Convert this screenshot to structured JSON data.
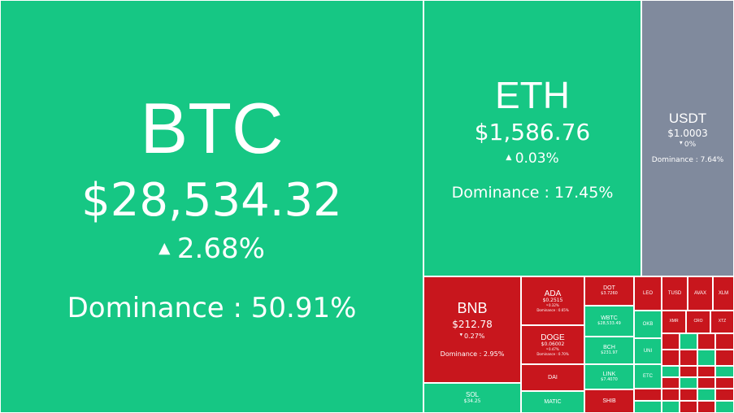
{
  "colors": {
    "up": "#16c784",
    "down": "#c8161d",
    "flat": "#808a9d"
  },
  "tiles": [
    {
      "symbol": "BTC",
      "price": "$28,534.32",
      "change": "2.68%",
      "direction": "up",
      "dominance": "Dominance : 50.91%"
    },
    {
      "symbol": "ETH",
      "price": "$1,586.76",
      "change": "0.03%",
      "direction": "up",
      "dominance": "Dominance : 17.45%"
    },
    {
      "symbol": "USDT",
      "price": "$1.0003",
      "change": "0%",
      "direction": "flat",
      "dominance": "Dominance : 7.64%"
    },
    {
      "symbol": "BNB",
      "price": "$212.78",
      "change": "0.27%",
      "direction": "down",
      "dominance": "Dominance : 2.95%"
    },
    {
      "symbol": "SOL",
      "price": "$34.25",
      "change": "",
      "direction": "up",
      "dominance": ""
    },
    {
      "symbol": "ADA",
      "price": "$0.2515",
      "change": "0.32%",
      "direction": "down",
      "dominance": "Dominance : 0.65%"
    },
    {
      "symbol": "DOGE",
      "price": "$0.06002",
      "change": "0.47%",
      "direction": "down",
      "dominance": "Dominance : 0.70%"
    },
    {
      "symbol": "DAI",
      "price": "",
      "change": "",
      "direction": "down",
      "dominance": ""
    },
    {
      "symbol": "MATIC",
      "price": "",
      "change": "",
      "direction": "up",
      "dominance": ""
    },
    {
      "symbol": "DOT",
      "price": "$3.7260",
      "change": "",
      "direction": "down",
      "dominance": ""
    },
    {
      "symbol": "WBTC",
      "price": "$28,533.49",
      "change": "",
      "direction": "up",
      "dominance": ""
    },
    {
      "symbol": "BCH",
      "price": "$231.97",
      "change": "",
      "direction": "up",
      "dominance": ""
    },
    {
      "symbol": "LINK",
      "price": "$7.4070",
      "change": "",
      "direction": "up",
      "dominance": ""
    },
    {
      "symbol": "SHIB",
      "price": "",
      "change": "",
      "direction": "down",
      "dominance": ""
    },
    {
      "symbol": "LEO",
      "price": "",
      "change": "",
      "direction": "down",
      "dominance": ""
    },
    {
      "symbol": "TUSD",
      "price": "",
      "change": "",
      "direction": "down",
      "dominance": ""
    },
    {
      "symbol": "AVAX",
      "price": "",
      "change": "",
      "direction": "down",
      "dominance": ""
    },
    {
      "symbol": "XLM",
      "price": "",
      "change": "",
      "direction": "down",
      "dominance": ""
    },
    {
      "symbol": "OKB",
      "price": "",
      "change": "",
      "direction": "up",
      "dominance": ""
    },
    {
      "symbol": "UNI",
      "price": "",
      "change": "",
      "direction": "up",
      "dominance": ""
    },
    {
      "symbol": "ETC",
      "price": "",
      "change": "",
      "direction": "up",
      "dominance": ""
    },
    {
      "symbol": "XMR",
      "price": "",
      "change": "",
      "direction": "down",
      "dominance": ""
    },
    {
      "symbol": "CRO",
      "price": "",
      "change": "",
      "direction": "down",
      "dominance": ""
    },
    {
      "symbol": "XTZ",
      "price": "",
      "change": "",
      "direction": "down",
      "dominance": ""
    }
  ]
}
